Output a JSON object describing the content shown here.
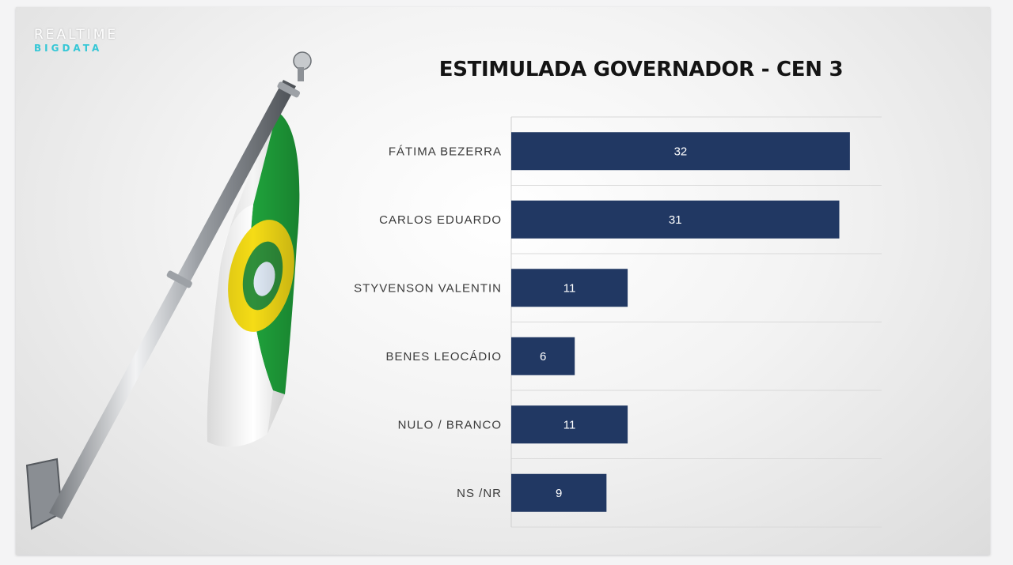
{
  "logo": {
    "line1": "REALTIME",
    "line2": "BIGDATA"
  },
  "chart_data": {
    "type": "bar",
    "orientation": "horizontal",
    "title": "ESTIMULADA GOVERNADOR - CEN 3",
    "categories": [
      "FÁTIMA BEZERRA",
      "CARLOS EDUARDO",
      "STYVENSON VALENTIN",
      "BENES LEOCÁDIO",
      "NULO / BRANCO",
      "NS /NR"
    ],
    "values": [
      32,
      31,
      11,
      6,
      11,
      9
    ],
    "xlim": [
      0,
      35
    ],
    "grid": true,
    "data_labels": true,
    "bar_color": "#213863"
  },
  "colors": {
    "flag_green": "#1fa23b",
    "flag_white": "#ffffff",
    "flag_yellow": "#f5dc16",
    "pole": "#b9bdc2"
  }
}
